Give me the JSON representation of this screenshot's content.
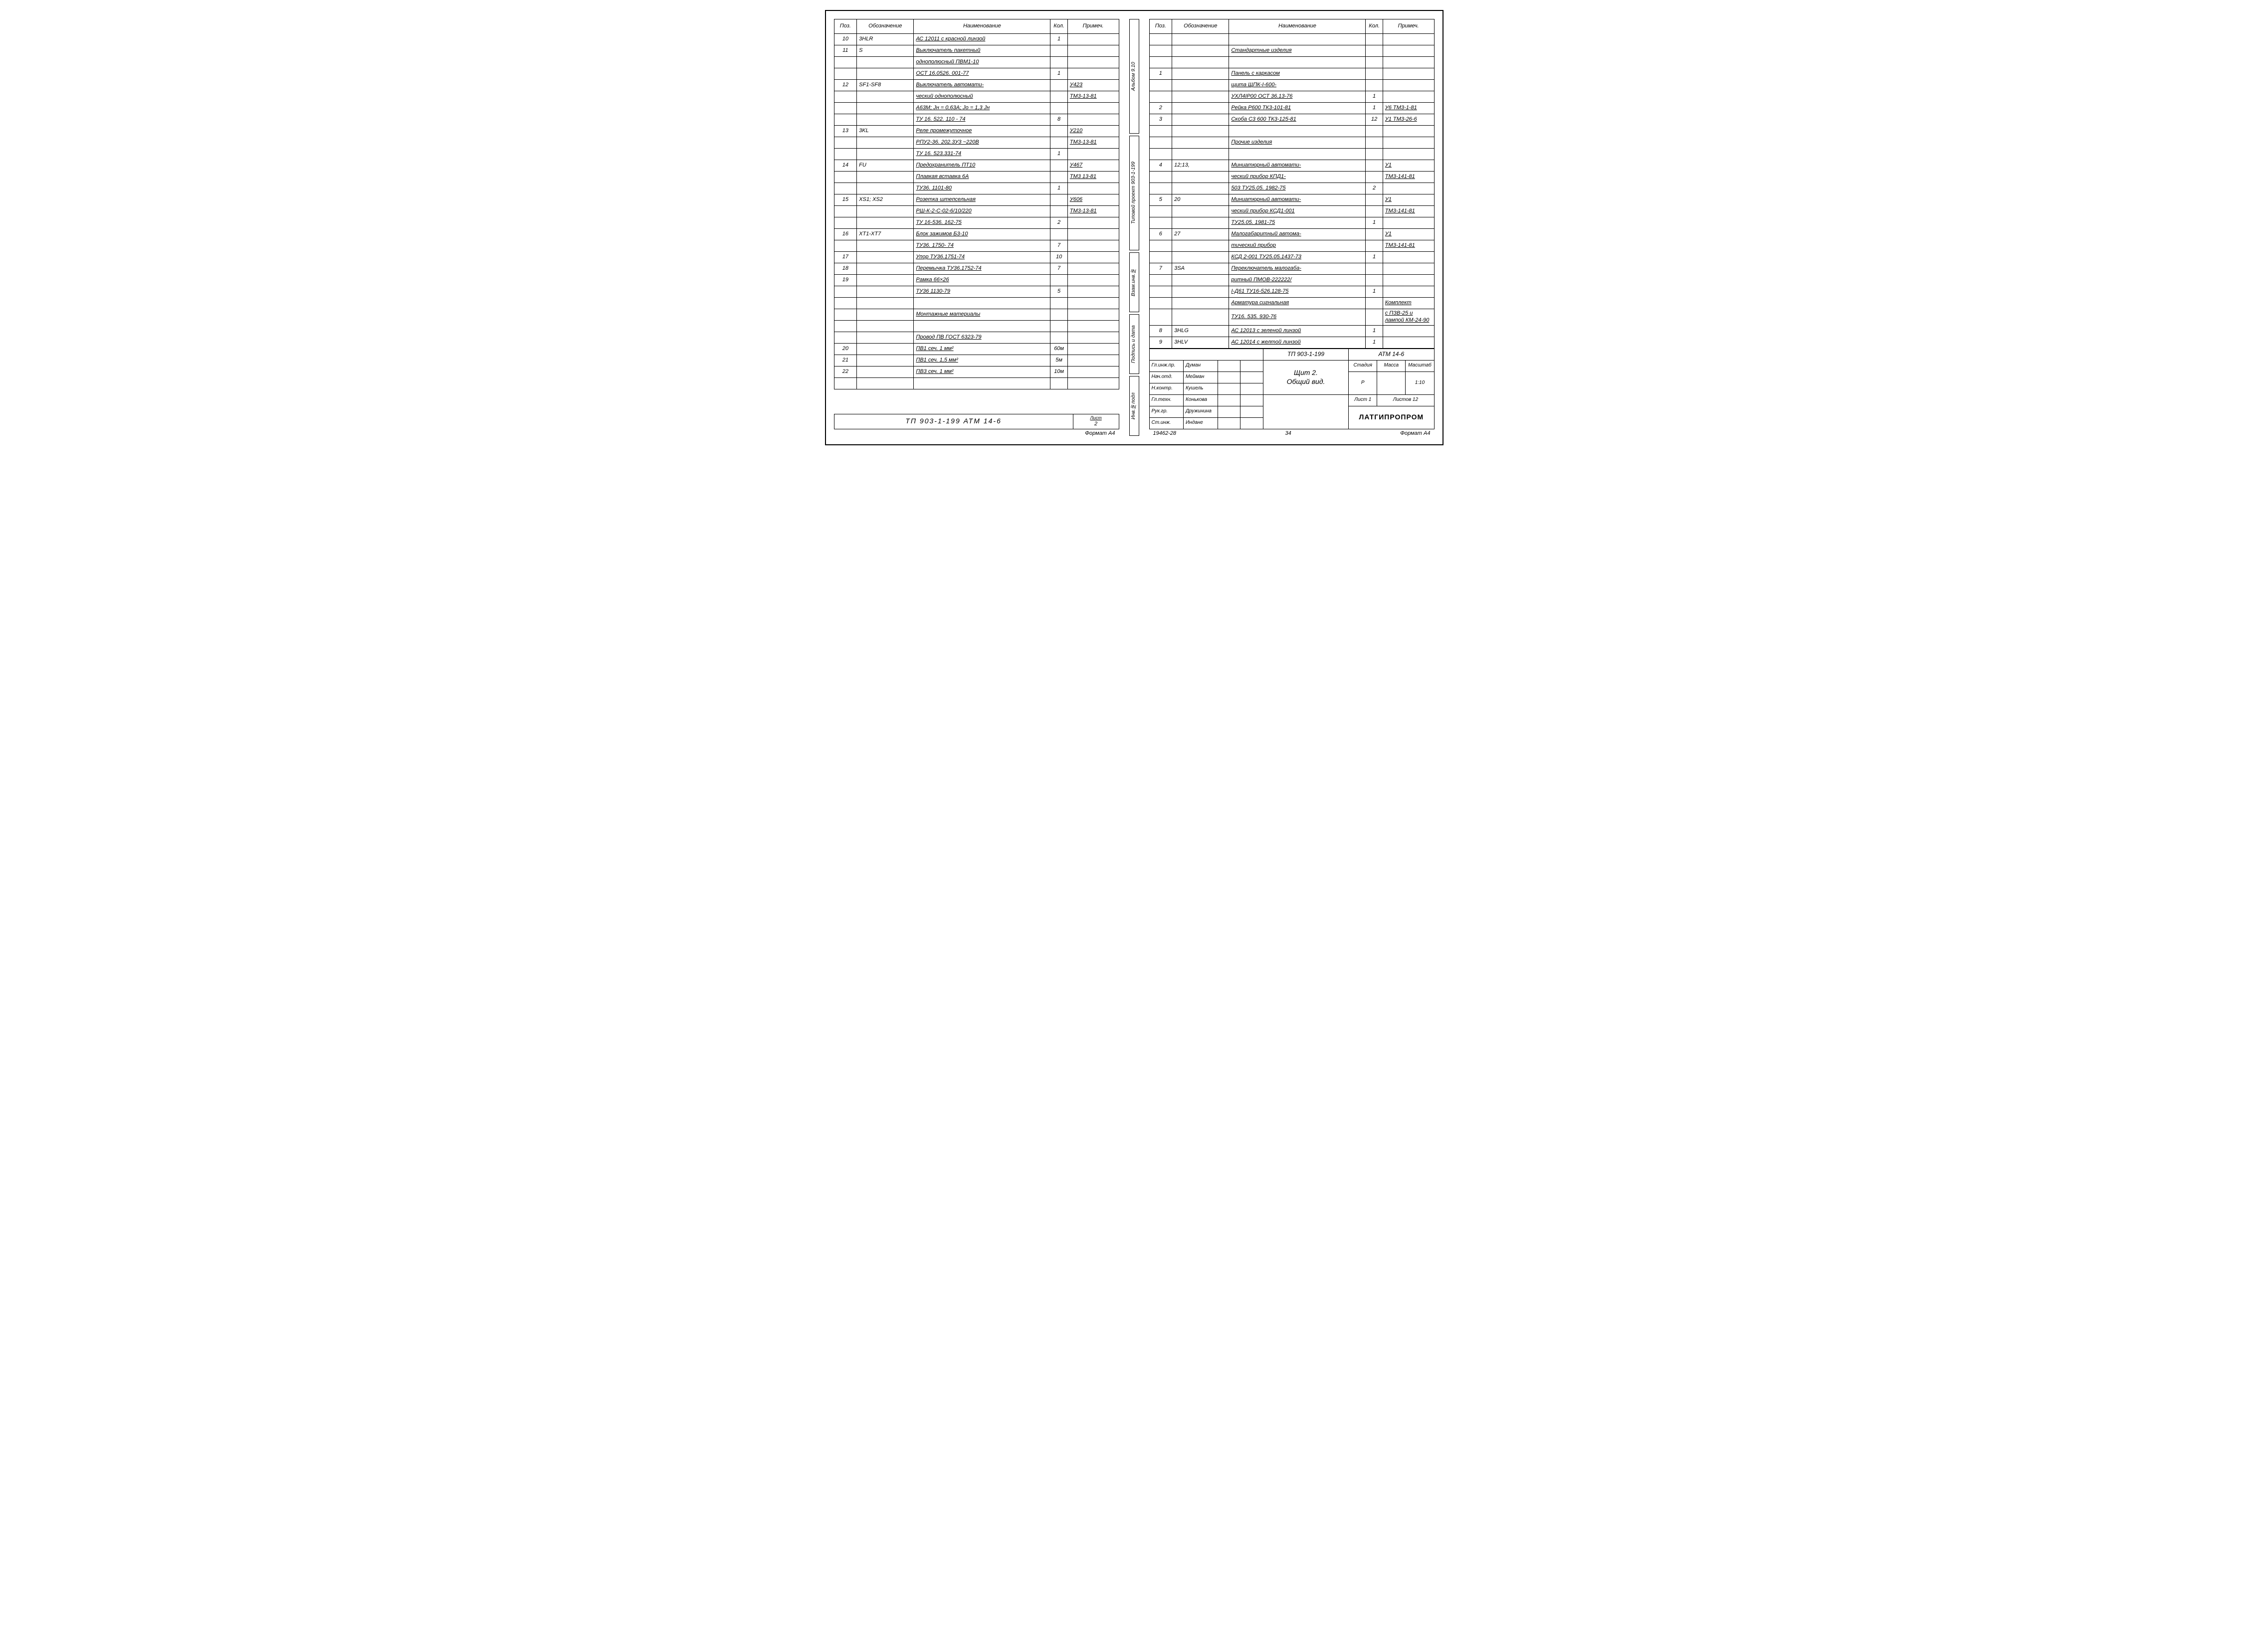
{
  "headers": {
    "pos": "Поз.",
    "des": "Обозначение",
    "name": "Наименование",
    "qty": "Кол.",
    "note": "Примеч."
  },
  "left_rows": [
    {
      "pos": "10",
      "des": "3HLR",
      "name_u": true,
      "name": "АС 12011 с красной линзой",
      "qty": "1",
      "note": ""
    },
    {
      "pos": "11",
      "des": "S",
      "name_u": true,
      "name": "Выключатель пакетный",
      "qty": "",
      "note": ""
    },
    {
      "pos": "",
      "des": "",
      "name_u": true,
      "name": "однополюсный  ПВМ1-10",
      "qty": "",
      "note": ""
    },
    {
      "pos": "",
      "des": "",
      "name_u": true,
      "name": "ОСТ 16.0526. 001-77",
      "qty": "1",
      "note": ""
    },
    {
      "pos": "12",
      "des": "SF1-SF8",
      "name_u": true,
      "name": "Выключатель автомати-",
      "qty": "",
      "note": "У423"
    },
    {
      "pos": "",
      "des": "",
      "name_u": true,
      "name": "ческий однополюсный",
      "qty": "",
      "note": "ТМ3-13-81"
    },
    {
      "pos": "",
      "des": "",
      "name_u": true,
      "name": "А63М;  Jн = 0,63А;  Jо = 1,3 Jн",
      "qty": "",
      "note": ""
    },
    {
      "pos": "",
      "des": "",
      "name_u": true,
      "name": "ТУ 16. 522. 110 - 74",
      "qty": "8",
      "note": ""
    },
    {
      "pos": "13",
      "des": "3KL",
      "name_u": true,
      "name": "Реле промежуточное",
      "qty": "",
      "note": "У210"
    },
    {
      "pos": "",
      "des": "",
      "name_u": true,
      "name": "РПУ2-36. 202.3У3    ~220В",
      "qty": "",
      "note": "ТМ3-13-81"
    },
    {
      "pos": "",
      "des": "",
      "name_u": true,
      "name": "ТУ 16. 523.331-74",
      "qty": "1",
      "note": ""
    },
    {
      "pos": "14",
      "des": "FU",
      "name_u": true,
      "name": "Предохранитель  ПТ10",
      "qty": "",
      "note": "У467"
    },
    {
      "pos": "",
      "des": "",
      "name_u": true,
      "name": "Плавкая вставка  6А",
      "qty": "",
      "note": "ТМ3 13-81"
    },
    {
      "pos": "",
      "des": "",
      "name_u": true,
      "name": "ТУ36. 1101-80",
      "qty": "1",
      "note": ""
    },
    {
      "pos": "15",
      "des": "XS1; XS2",
      "name_u": true,
      "name": "Розетка штепсельная",
      "qty": "",
      "note": "У606"
    },
    {
      "pos": "",
      "des": "",
      "name_u": true,
      "name": "РШ-К-2-С-02-6/10/220",
      "qty": "",
      "note": "ТМ3-13-81"
    },
    {
      "pos": "",
      "des": "",
      "name_u": true,
      "name": "ТУ 16-536. 162-75",
      "qty": "2",
      "note": ""
    },
    {
      "pos": "16",
      "des": "XT1-XT7",
      "name_u": true,
      "name": "Блок зажимов Б3-10",
      "qty": "",
      "note": ""
    },
    {
      "pos": "",
      "des": "",
      "name_u": true,
      "name": "ТУ36. 1750- 74",
      "qty": "7",
      "note": ""
    },
    {
      "pos": "17",
      "des": "",
      "name_u": true,
      "name": "Упор  ТУ36.1751-74",
      "qty": "10",
      "note": ""
    },
    {
      "pos": "18",
      "des": "",
      "name_u": true,
      "name": "Перемычка ТУ36.1752-74",
      "qty": "7",
      "note": ""
    },
    {
      "pos": "19",
      "des": "",
      "name_u": true,
      "name": "Рамка 66×26",
      "qty": "",
      "note": ""
    },
    {
      "pos": "",
      "des": "",
      "name_u": true,
      "name": "ТУ36 1130-79",
      "qty": "5",
      "note": ""
    },
    {
      "pos": "",
      "des": "",
      "name": "",
      "qty": "",
      "note": ""
    },
    {
      "pos": "",
      "des": "",
      "name_u": true,
      "name": "Монтажные материалы",
      "qty": "",
      "note": ""
    },
    {
      "pos": "",
      "des": "",
      "name": "",
      "qty": "",
      "note": ""
    },
    {
      "pos": "",
      "des": "",
      "name_u": true,
      "name": "Провод ПВ  ГОСТ 6323-79",
      "qty": "",
      "note": ""
    },
    {
      "pos": "20",
      "des": "",
      "name_u": true,
      "name": "ПВ1  сеч.   1 мм²",
      "qty": "60м",
      "note": ""
    },
    {
      "pos": "21",
      "des": "",
      "name_u": true,
      "name": "ПВ1  сеч.   1,5 мм²",
      "qty": "5м",
      "note": ""
    },
    {
      "pos": "22",
      "des": "",
      "name_u": true,
      "name": "ПВ3  сеч.   1 мм²",
      "qty": "10м",
      "note": ""
    },
    {
      "pos": "",
      "des": "",
      "name": "",
      "qty": "",
      "note": ""
    }
  ],
  "left_footer": {
    "code": "ТП 903-1-199      АТМ 14-6",
    "list_h": "Лист",
    "list_v": "2",
    "format": "Формат А4"
  },
  "spine": {
    "t1": "Альбом 9.10",
    "t2": "Типовой проект 903-1-199",
    "s1": "Инв.№подл",
    "s2": "Подпись и дата",
    "s3": "Взам.инв.№"
  },
  "right_rows": [
    {
      "pos": "",
      "des": "",
      "name": "",
      "qty": "",
      "note": ""
    },
    {
      "pos": "",
      "des": "",
      "name_u": true,
      "name": "Стандартные  изделия",
      "qty": "",
      "note": ""
    },
    {
      "pos": "",
      "des": "",
      "name": "",
      "qty": "",
      "note": ""
    },
    {
      "pos": "1",
      "des": "",
      "name_u": true,
      "name": "Панель  с каркасом",
      "qty": "",
      "note": ""
    },
    {
      "pos": "",
      "des": "",
      "name_u": true,
      "name": "щита  ЩПК-I-600-",
      "qty": "",
      "note": ""
    },
    {
      "pos": "",
      "des": "",
      "name_u": true,
      "name": "УХЛ4IР00   ОСТ 36.13-76",
      "qty": "1",
      "note": ""
    },
    {
      "pos": "2",
      "des": "",
      "name_u": true,
      "name": "Рейка Р600  ТК3-101-81",
      "qty": "1",
      "note": "У6 ТМ3-1-81"
    },
    {
      "pos": "3",
      "des": "",
      "name_u": true,
      "name": "Скоба С3 600  ТК3-125-81",
      "qty": "12",
      "note": "У1 ТМ3-26-6"
    },
    {
      "pos": "",
      "des": "",
      "name": "",
      "qty": "",
      "note": ""
    },
    {
      "pos": "",
      "des": "",
      "name_u": true,
      "name": "Прочие  изделия",
      "qty": "",
      "note": ""
    },
    {
      "pos": "",
      "des": "",
      "name": "",
      "qty": "",
      "note": ""
    },
    {
      "pos": "4",
      "des": "12;13,",
      "name_u": true,
      "name": "Миниатюрный автомати-",
      "qty": "",
      "note": "У1"
    },
    {
      "pos": "",
      "des": "",
      "name_u": true,
      "name": "ческий прибор КПД1-",
      "qty": "",
      "note": "ТМ3-141-81"
    },
    {
      "pos": "",
      "des": "",
      "name_u": true,
      "name": "503   ТУ25.05. 1982-75",
      "qty": "2",
      "note": ""
    },
    {
      "pos": "5",
      "des": "20",
      "name_u": true,
      "name": "Миниатюрный автомати-",
      "qty": "",
      "note": "У1"
    },
    {
      "pos": "",
      "des": "",
      "name_u": true,
      "name": "ческий прибор КСД1-001",
      "qty": "",
      "note": "ТМ3-141-81"
    },
    {
      "pos": "",
      "des": "",
      "name_u": true,
      "name": "ТУ25.05. 1981-75",
      "qty": "1",
      "note": ""
    },
    {
      "pos": "6",
      "des": "27",
      "name_u": true,
      "name": "Малогабаритный автома-",
      "qty": "",
      "note": "У1"
    },
    {
      "pos": "",
      "des": "",
      "name_u": true,
      "name": "тический прибор",
      "qty": "",
      "note": "ТМ3-141-81"
    },
    {
      "pos": "",
      "des": "",
      "name_u": true,
      "name": "КСД 2-001  ТУ25.05.1437-73",
      "qty": "1",
      "note": ""
    },
    {
      "pos": "7",
      "des": "3SA",
      "name_u": true,
      "name": "Переключатель малогаба-",
      "qty": "",
      "note": ""
    },
    {
      "pos": "",
      "des": "",
      "name_u": true,
      "name": "ритный  ПМОВ-222222/",
      "qty": "",
      "note": ""
    },
    {
      "pos": "",
      "des": "",
      "name_u": true,
      "name": "I-Д61  ТУ16-526.128-75",
      "qty": "1",
      "note": ""
    },
    {
      "pos": "",
      "des": "",
      "name_u": true,
      "name": "Арматура  сигнальная",
      "qty": "",
      "note": "Комплект"
    },
    {
      "pos": "",
      "des": "",
      "name_u": true,
      "name": "ТУ16. 535. 930-76",
      "qty": "",
      "note": "с ПЗВ-25 и лампой КМ-24-90"
    },
    {
      "pos": "8",
      "des": "3HLG",
      "name_u": true,
      "name": "АС 12013 с зеленой линзой",
      "qty": "1",
      "note": ""
    },
    {
      "pos": "9",
      "des": "3HLV",
      "name_u": true,
      "name": "АС 12014 с желтой линзой",
      "qty": "1",
      "note": ""
    }
  ],
  "titleblock": {
    "project": "ТП 903-1-199",
    "sheetcode": "АТМ 14-6",
    "title1": "Щит 2.",
    "title2": "Общий вид.",
    "stage_h": "Стадия",
    "mass_h": "Масса",
    "scale_h": "Масштаб",
    "stage_v": "Р",
    "scale_v": "1:10",
    "list_h": "Лист 1",
    "lists_h": "Листов 12",
    "org": "ЛАТГИПРОПРОМ",
    "roles": [
      {
        "r": "Гл.инж.пр.",
        "n": "Думан"
      },
      {
        "r": "Нач.отд.",
        "n": "Мейман"
      },
      {
        "r": "Н.контр.",
        "n": "Кушель"
      },
      {
        "r": "Гл.техн.",
        "n": "Конькова"
      },
      {
        "r": "Рук.гр.",
        "n": "Дружинина"
      },
      {
        "r": "Ст.инж.",
        "n": "Индане"
      }
    ],
    "inv": "19462-28",
    "page": "34",
    "format": "Формат А4"
  }
}
